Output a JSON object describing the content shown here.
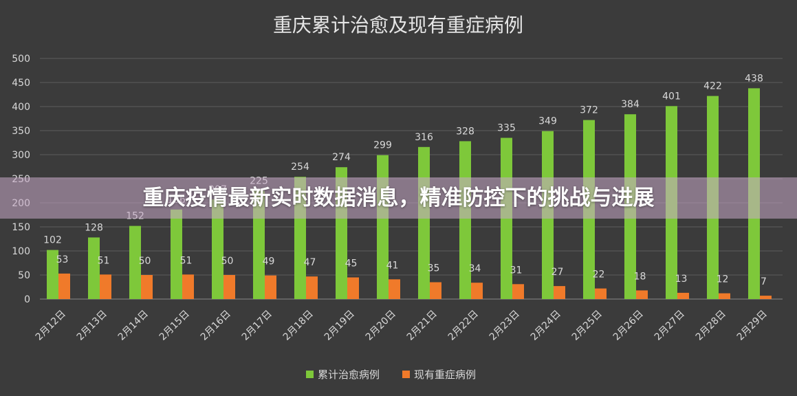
{
  "chart_data": {
    "type": "bar",
    "title": "重庆累计治愈及现有重症病例",
    "categories": [
      "2月12日",
      "2月13日",
      "2月14日",
      "2月15日",
      "2月16日",
      "2月17日",
      "2月18日",
      "2月19日",
      "2月20日",
      "2月21日",
      "2月22日",
      "2月23日",
      "2月24日",
      "2月25日",
      "2月26日",
      "2月27日",
      "2月28日",
      "2月29日"
    ],
    "series": [
      {
        "name": "累计治愈病例",
        "color": "#7ec83a",
        "values": [
          102,
          128,
          152,
          186,
          207,
          225,
          254,
          274,
          299,
          316,
          328,
          335,
          349,
          372,
          384,
          401,
          422,
          438
        ]
      },
      {
        "name": "现有重症病例",
        "color": "#f07a2a",
        "values": [
          53,
          51,
          50,
          51,
          50,
          49,
          47,
          45,
          41,
          35,
          34,
          31,
          27,
          22,
          18,
          13,
          12,
          7
        ]
      }
    ],
    "ylim": [
      0,
      500
    ],
    "yticks": [
      0,
      50,
      100,
      150,
      200,
      250,
      300,
      350,
      400,
      450,
      500
    ],
    "grid": true,
    "legend_position": "bottom"
  },
  "banner": {
    "text": "重庆疫情最新实时数据消息，精准防控下的挑战与进展"
  }
}
